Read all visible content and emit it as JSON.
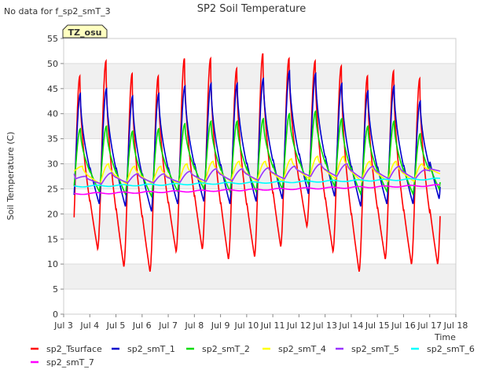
{
  "note": "No data for f_sp2_smT_3",
  "badge": "TZ_osu",
  "chart_data": {
    "type": "line",
    "title": "SP2 Soil Temperature",
    "xlabel": "Time",
    "ylabel": "Soil Temperature (C)",
    "xlim": [
      3,
      18
    ],
    "ylim": [
      0,
      55
    ],
    "x_ticks": [
      3,
      4,
      5,
      6,
      7,
      8,
      9,
      10,
      11,
      12,
      13,
      14,
      15,
      16,
      17,
      18
    ],
    "x_tick_labels": [
      "Jul 3",
      "Jul 4",
      "Jul 5",
      "Jul 6",
      "Jul 7",
      "Jul 8",
      "Jul 9",
      "Jul 10",
      "Jul 11",
      "Jul 12",
      "Jul 13",
      "Jul 14",
      "Jul 15",
      "Jul 16",
      "Jul 17",
      "Jul 18"
    ],
    "y_ticks": [
      0,
      5,
      10,
      15,
      20,
      25,
      30,
      35,
      40,
      45,
      50,
      55
    ],
    "grid": "horizontal bands",
    "legend_position": "bottom",
    "day_values": [
      3.4,
      4.0,
      5.0,
      6.0,
      7.0,
      8.0,
      9.0,
      10.0,
      11.0,
      12.0,
      13.0,
      14.0,
      15.0,
      16.0,
      17.0,
      17.4
    ],
    "series": [
      {
        "name": "sp2_Tsurface",
        "color": "#ff0000",
        "kind": "surface",
        "peak": [
          47.5,
          50.5,
          48,
          47.5,
          51,
          51,
          49,
          52,
          51,
          50.5,
          49.5,
          47.5,
          48.5,
          47
        ],
        "min": [
          9.5,
          13,
          9.5,
          8.5,
          12.5,
          13,
          11,
          11.5,
          13.5,
          17.5,
          12.5,
          8.5,
          11,
          10,
          10
        ]
      },
      {
        "name": "sp2_smT_1",
        "color": "#0000cc",
        "kind": "deep",
        "peak": [
          44,
          45,
          43.5,
          44,
          45.5,
          46,
          46,
          47,
          48.5,
          48,
          46,
          44.5,
          45.5,
          42.5
        ],
        "min": [
          21,
          22,
          21.5,
          20.5,
          22,
          22.5,
          22,
          22.5,
          23,
          24,
          23.5,
          21.5,
          22,
          22,
          23
        ]
      },
      {
        "name": "sp2_smT_2",
        "color": "#00dd00",
        "kind": "deep",
        "peak": [
          37,
          37.5,
          36.5,
          37,
          38,
          38.5,
          38.5,
          39,
          40,
          40.5,
          39,
          37.5,
          38.5,
          36
        ],
        "min": [
          24,
          24.5,
          24,
          23.5,
          24.5,
          25,
          24.5,
          24.5,
          25,
          26,
          25.5,
          24,
          24.5,
          24,
          25
        ]
      },
      {
        "name": "sp2_smT_4",
        "color": "#ffff00",
        "kind": "mid",
        "peak": [
          29.5,
          30,
          29.5,
          29.5,
          30,
          30.5,
          30.5,
          30.5,
          31,
          31.5,
          31.5,
          30.5,
          30.5,
          30
        ],
        "min": [
          28.5,
          26,
          26,
          26,
          26,
          26,
          26.5,
          26.5,
          26.5,
          27,
          27,
          26.5,
          26.5,
          26.5,
          28
        ]
      },
      {
        "name": "sp2_smT_5",
        "color": "#9933ff",
        "kind": "lag",
        "peak": [
          27.5,
          28.2,
          28,
          28,
          28.5,
          29,
          29,
          29.2,
          29.5,
          30,
          30,
          29.5,
          29.5,
          28.8
        ],
        "min": [
          27,
          26,
          26.2,
          26.2,
          26.3,
          26.5,
          26.6,
          26.7,
          27,
          27.5,
          27.5,
          27,
          27,
          27,
          28.5
        ]
      },
      {
        "name": "sp2_smT_6",
        "color": "#00ffff",
        "kind": "flat",
        "start": 25.5,
        "end": 27.0
      },
      {
        "name": "sp2_smT_7",
        "color": "#ff00ff",
        "kind": "flat",
        "start": 24.0,
        "end": 25.7
      }
    ]
  }
}
